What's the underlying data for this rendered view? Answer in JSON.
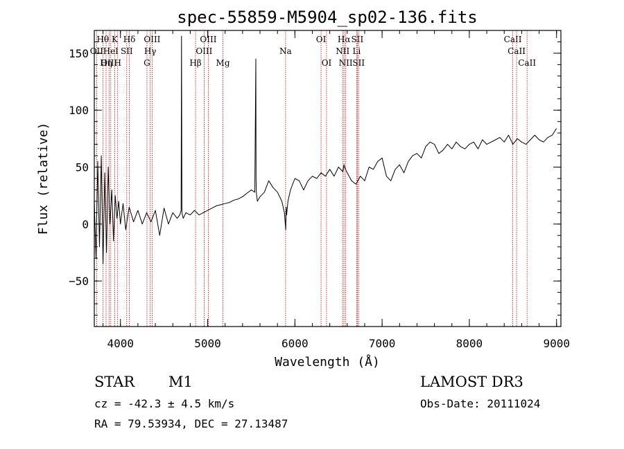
{
  "chart_data": {
    "type": "line",
    "title": "spec-55859-M5904_sp02-136.fits",
    "xlabel": "Wavelength (Å)",
    "ylabel": "Flux (relative)",
    "xlim": [
      3700,
      9050
    ],
    "ylim": [
      -90,
      170
    ],
    "xticks": [
      4000,
      5000,
      6000,
      7000,
      8000,
      9000
    ],
    "yticks": [
      -50,
      0,
      50,
      100,
      150
    ],
    "grid": false,
    "series": [
      {
        "name": "flux",
        "color": "#000000",
        "x": [
          3700,
          3720,
          3740,
          3760,
          3780,
          3800,
          3820,
          3840,
          3860,
          3880,
          3900,
          3920,
          3940,
          3960,
          3980,
          4000,
          4030,
          4060,
          4100,
          4150,
          4200,
          4250,
          4300,
          4350,
          4400,
          4450,
          4500,
          4550,
          4600,
          4650,
          4680,
          4695,
          4700,
          4705,
          4720,
          4750,
          4800,
          4850,
          4900,
          4950,
          5000,
          5050,
          5100,
          5150,
          5200,
          5250,
          5300,
          5350,
          5400,
          5450,
          5500,
          5540,
          5552,
          5555,
          5558,
          5570,
          5600,
          5650,
          5700,
          5750,
          5800,
          5850,
          5880,
          5895,
          5900,
          5905,
          5920,
          5950,
          6000,
          6050,
          6100,
          6150,
          6200,
          6250,
          6300,
          6350,
          6400,
          6450,
          6500,
          6550,
          6563,
          6580,
          6600,
          6650,
          6700,
          6750,
          6800,
          6850,
          6900,
          6950,
          7000,
          7050,
          7100,
          7150,
          7200,
          7250,
          7300,
          7350,
          7400,
          7450,
          7500,
          7550,
          7600,
          7650,
          7700,
          7750,
          7800,
          7850,
          7900,
          7950,
          8000,
          8050,
          8100,
          8150,
          8200,
          8250,
          8300,
          8350,
          8400,
          8450,
          8500,
          8550,
          8600,
          8650,
          8700,
          8750,
          8800,
          8850,
          8900,
          8950,
          9000
        ],
        "y": [
          20,
          -30,
          55,
          -20,
          60,
          -35,
          45,
          -25,
          50,
          0,
          30,
          -15,
          25,
          5,
          20,
          0,
          18,
          -5,
          15,
          2,
          12,
          0,
          10,
          2,
          12,
          -10,
          14,
          0,
          10,
          5,
          8,
          12,
          165,
          10,
          5,
          10,
          8,
          12,
          8,
          10,
          12,
          14,
          16,
          17,
          18,
          19,
          21,
          22,
          24,
          27,
          30,
          28,
          145,
          40,
          28,
          20,
          24,
          28,
          38,
          32,
          28,
          20,
          10,
          -5,
          15,
          8,
          20,
          30,
          40,
          38,
          30,
          38,
          42,
          40,
          45,
          42,
          48,
          42,
          50,
          46,
          52,
          48,
          45,
          38,
          35,
          42,
          38,
          50,
          48,
          55,
          58,
          42,
          38,
          48,
          52,
          45,
          55,
          60,
          62,
          58,
          68,
          72,
          70,
          62,
          65,
          70,
          66,
          72,
          68,
          66,
          70,
          72,
          66,
          74,
          70,
          72,
          74,
          76,
          72,
          78,
          70,
          75,
          72,
          70,
          74,
          78,
          74,
          72,
          76,
          78,
          84
        ]
      }
    ],
    "line_labels": [
      {
        "text": "Hθ",
        "wavelength": 3798,
        "row": 1
      },
      {
        "text": "OII",
        "wavelength": 3727,
        "row": 2
      },
      {
        "text": "OIII",
        "wavelength": 3869,
        "row": 3
      },
      {
        "text": "K",
        "wavelength": 3934,
        "row": 1
      },
      {
        "text": "HeI",
        "wavelength": 3889,
        "row": 2
      },
      {
        "text": "SII",
        "wavelength": 4072,
        "row": 2
      },
      {
        "text": "Hη",
        "wavelength": 3835,
        "row": 3
      },
      {
        "text": "H",
        "wavelength": 3968,
        "row": 3
      },
      {
        "text": "Hδ",
        "wavelength": 4102,
        "row": 1
      },
      {
        "text": "OIII",
        "wavelength": 4363,
        "row": 1
      },
      {
        "text": "Hγ",
        "wavelength": 4341,
        "row": 2
      },
      {
        "text": "G",
        "wavelength": 4304,
        "row": 3
      },
      {
        "text": "OIII",
        "wavelength": 5007,
        "row": 1
      },
      {
        "text": "OIII",
        "wavelength": 4959,
        "row": 2
      },
      {
        "text": "Hβ",
        "wavelength": 4861,
        "row": 3
      },
      {
        "text": "Mg",
        "wavelength": 5175,
        "row": 3
      },
      {
        "text": "Na",
        "wavelength": 5893,
        "row": 2
      },
      {
        "text": "OI",
        "wavelength": 6300,
        "row": 1
      },
      {
        "text": "OI",
        "wavelength": 6363,
        "row": 3
      },
      {
        "text": "Hα",
        "wavelength": 6563,
        "row": 1
      },
      {
        "text": "SII",
        "wavelength": 6716,
        "row": 1
      },
      {
        "text": "NII",
        "wavelength": 6548,
        "row": 2
      },
      {
        "text": "Li",
        "wavelength": 6708,
        "row": 2
      },
      {
        "text": "NII",
        "wavelength": 6583,
        "row": 3
      },
      {
        "text": "SII",
        "wavelength": 6731,
        "row": 3
      },
      {
        "text": "CaII",
        "wavelength": 8498,
        "row": 1
      },
      {
        "text": "CaII",
        "wavelength": 8542,
        "row": 2
      },
      {
        "text": "CaII",
        "wavelength": 8662,
        "row": 3
      }
    ],
    "line_color": "#cc0000"
  },
  "info": {
    "object_class": "STAR",
    "subclass": "M1",
    "survey": "LAMOST DR3",
    "redshift": "cz = -42.3 ± 4.5 km/s",
    "obs_date": "Obs-Date: 20111024",
    "coords": "RA =  79.53934, DEC =  27.13487"
  }
}
